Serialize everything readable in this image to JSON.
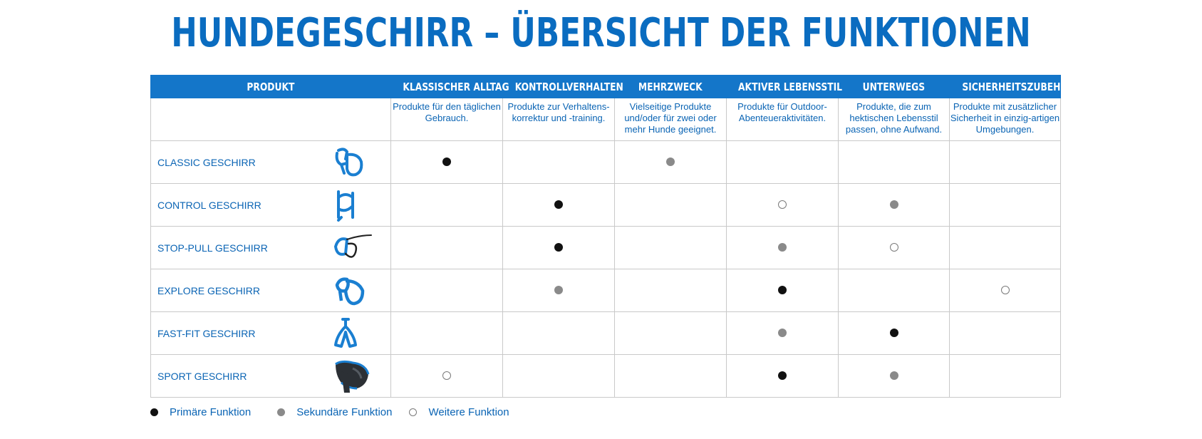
{
  "title": "HUNDEGESCHIRR – ÜBERSICHT DER FUNKTIONEN",
  "headers": [
    "PRODUKT",
    "KLASSISCHER ALLTAG",
    "KONTROLLVERHALTEN",
    "MEHRZWECK",
    "AKTIVER LEBENSSTIL",
    "UNTERWEGS",
    "SICHERHEITSZUBEHÖR"
  ],
  "descriptions": [
    "",
    "Produkte für den täglichen Gebrauch.",
    "Produkte zur Verhaltens-korrektur und -training.",
    "Vielseitige Produkte und/oder für zwei oder mehr Hunde geeignet.",
    "Produkte für Outdoor-Abenteueraktivitäten.",
    "Produkte, die zum hektischen Lebensstil passen, ohne Aufwand.",
    "Produkte mit zusätzlicher Sicherheit in einzig-artigen Umgebungen."
  ],
  "rows": [
    {
      "name": "CLASSIC GESCHIRR",
      "icon": "classic-harness-icon",
      "marks": [
        "primary",
        "",
        "secondary",
        "",
        "",
        ""
      ]
    },
    {
      "name": "CONTROL GESCHIRR",
      "icon": "control-harness-icon",
      "marks": [
        "",
        "primary",
        "",
        "further",
        "secondary",
        ""
      ]
    },
    {
      "name": "STOP-PULL GESCHIRR",
      "icon": "stop-pull-harness-icon",
      "marks": [
        "",
        "primary",
        "",
        "secondary",
        "further",
        ""
      ]
    },
    {
      "name": "EXPLORE GESCHIRR",
      "icon": "explore-harness-icon",
      "marks": [
        "",
        "secondary",
        "",
        "primary",
        "",
        "further"
      ]
    },
    {
      "name": "FAST-FIT GESCHIRR",
      "icon": "fast-fit-harness-icon",
      "marks": [
        "",
        "",
        "",
        "secondary",
        "primary",
        ""
      ]
    },
    {
      "name": "SPORT GESCHIRR",
      "icon": "sport-harness-icon",
      "marks": [
        "further",
        "",
        "",
        "primary",
        "secondary",
        ""
      ]
    }
  ],
  "legend": {
    "primary": "Primäre Funktion",
    "secondary": "Sekundäre Funktion",
    "further": "Weitere Funktion"
  },
  "colors": {
    "brand_blue": "#1476c9",
    "text_blue": "#0a64b4",
    "primary_dot": "#111111",
    "secondary_dot": "#8a8a8a",
    "grid_line": "#c9c9c9"
  }
}
